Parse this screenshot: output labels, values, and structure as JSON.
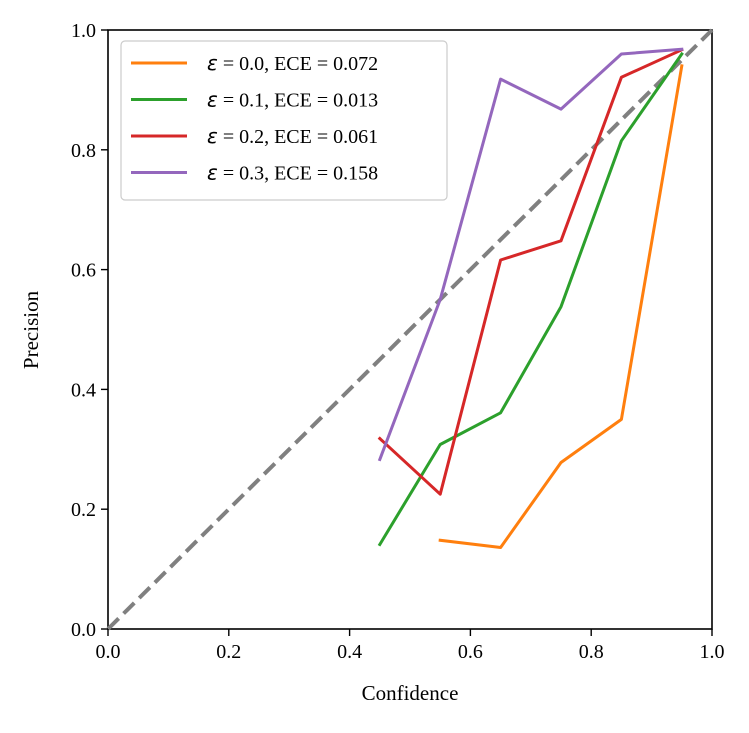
{
  "chart_data": {
    "type": "line",
    "title": "",
    "xlabel": "Confidence",
    "ylabel": "Precision",
    "xlim": [
      0.0,
      1.0
    ],
    "ylim": [
      0.0,
      1.0
    ],
    "x_ticks": [
      "0.0",
      "0.2",
      "0.4",
      "0.6",
      "0.8",
      "1.0"
    ],
    "y_ticks": [
      "0.0",
      "0.2",
      "0.4",
      "0.6",
      "0.8",
      "1.0"
    ],
    "grid": false,
    "legend_position": "top-left",
    "reference_line": {
      "name": "perfect calibration",
      "x": [
        0.0,
        1.0
      ],
      "y": [
        0.0,
        1.0
      ],
      "style": "dashed",
      "color": "#808080"
    },
    "series": [
      {
        "epsilon_symbol": "ε",
        "name": " = 0.0, ECE = 0.072",
        "color": "#ff7f0e",
        "x": [
          0.55,
          0.65,
          0.75,
          0.85,
          0.95
        ],
        "y": [
          0.148,
          0.136,
          0.278,
          0.35,
          0.94
        ]
      },
      {
        "epsilon_symbol": "ε",
        "name": " = 0.1, ECE = 0.013",
        "color": "#2ca02c",
        "x": [
          0.45,
          0.55,
          0.65,
          0.75,
          0.85,
          0.95
        ],
        "y": [
          0.141,
          0.308,
          0.361,
          0.538,
          0.815,
          0.96
        ]
      },
      {
        "epsilon_symbol": "ε",
        "name": " = 0.2, ECE = 0.061",
        "color": "#d62728",
        "x": [
          0.45,
          0.55,
          0.65,
          0.75,
          0.85,
          0.95
        ],
        "y": [
          0.318,
          0.225,
          0.616,
          0.648,
          0.921,
          0.967
        ]
      },
      {
        "epsilon_symbol": "ε",
        "name": " = 0.3, ECE = 0.158",
        "color": "#9467bd",
        "x": [
          0.45,
          0.55,
          0.65,
          0.75,
          0.85,
          0.95
        ],
        "y": [
          0.283,
          0.55,
          0.918,
          0.868,
          0.96,
          0.968
        ]
      }
    ]
  }
}
